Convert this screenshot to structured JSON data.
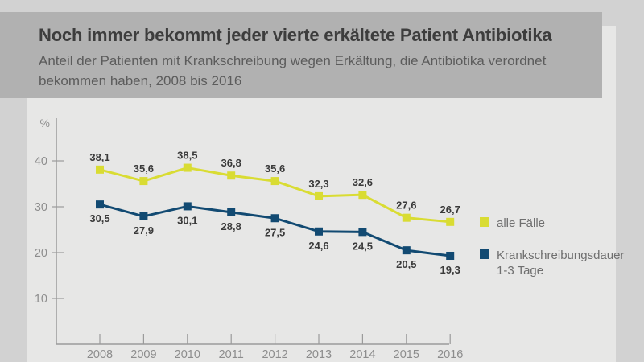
{
  "page": {
    "outer_background": "#d2d2d2",
    "panel_background": "#e7e7e6",
    "header_background": "#b1b1b1"
  },
  "header": {
    "title": "Noch immer bekommt jeder vierte erkältete Patient Antibiotika",
    "subtitle": "Anteil der Patienten mit Krankschreibung wegen Erkältung, die Antibiotika verordnet bekommen haben, 2008 bis 2016"
  },
  "legend": {
    "series1_label": "alle Fälle",
    "series2_label_line1": "Krankschreibungsdauer",
    "series2_label_line2": "1-3 Tage",
    "position": "right"
  },
  "chart_data": {
    "type": "line",
    "title": "Noch immer bekommt jeder vierte erkältete Patient Antibiotika",
    "subtitle": "Anteil der Patienten mit Krankschreibung wegen Erkältung, die Antibiotika verordnet bekommen haben, 2008 bis 2016",
    "unit": "%",
    "decimal_separator": ",",
    "categories": [
      "2008",
      "2009",
      "2010",
      "2011",
      "2012",
      "2013",
      "2014",
      "2015",
      "2016"
    ],
    "y_ticks": [
      10,
      20,
      30,
      40
    ],
    "ylim": [
      0,
      49
    ],
    "grid": "off",
    "series": [
      {
        "name": "alle Fälle",
        "color": "#d9dc33",
        "marker": "square",
        "label_position": "above",
        "values": [
          38.1,
          35.6,
          38.5,
          36.8,
          35.6,
          32.3,
          32.6,
          27.6,
          26.7
        ]
      },
      {
        "name": "Krankschreibungsdauer 1-3 Tage",
        "color": "#124a72",
        "marker": "square",
        "label_position": "below",
        "values": [
          30.5,
          27.9,
          30.1,
          28.8,
          27.5,
          24.6,
          24.5,
          20.5,
          19.3
        ]
      }
    ]
  }
}
